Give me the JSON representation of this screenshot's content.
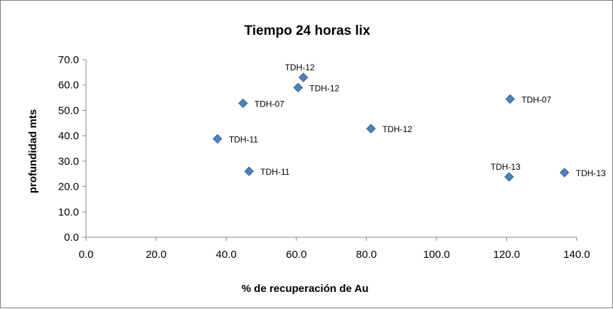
{
  "chart_data": {
    "type": "scatter",
    "title": "Tiempo 24 horas lix",
    "xlabel": "% de  recuperación de Au",
    "ylabel": "profundidad mts",
    "xlim": [
      0,
      140
    ],
    "ylim": [
      0,
      70
    ],
    "xticks": [
      0,
      20,
      40,
      60,
      80,
      100,
      120,
      140
    ],
    "yticks": [
      0,
      10,
      20,
      30,
      40,
      50,
      60,
      70
    ],
    "tick_format_decimals": 1,
    "grid": false,
    "marker": "diamond",
    "marker_color": "#4f81bd",
    "marker_edge_color": "#385d8a",
    "points": [
      {
        "x": 62.0,
        "y": 63.0,
        "label": "TDH-12",
        "label_pos": "above"
      },
      {
        "x": 60.5,
        "y": 59.0,
        "label": "TDH-12",
        "label_pos": "right"
      },
      {
        "x": 44.8,
        "y": 52.8,
        "label": "TDH-07",
        "label_pos": "right"
      },
      {
        "x": 121.0,
        "y": 54.5,
        "label": "TDH-07",
        "label_pos": "right"
      },
      {
        "x": 81.3,
        "y": 42.8,
        "label": "TDH-12",
        "label_pos": "right"
      },
      {
        "x": 37.5,
        "y": 38.8,
        "label": "TDH-11",
        "label_pos": "right"
      },
      {
        "x": 46.5,
        "y": 26.0,
        "label": "TDH-11",
        "label_pos": "right"
      },
      {
        "x": 120.7,
        "y": 23.8,
        "label": "TDH-13",
        "label_pos": "above"
      },
      {
        "x": 136.5,
        "y": 25.5,
        "label": "TDH-13",
        "label_pos": "right"
      }
    ]
  }
}
